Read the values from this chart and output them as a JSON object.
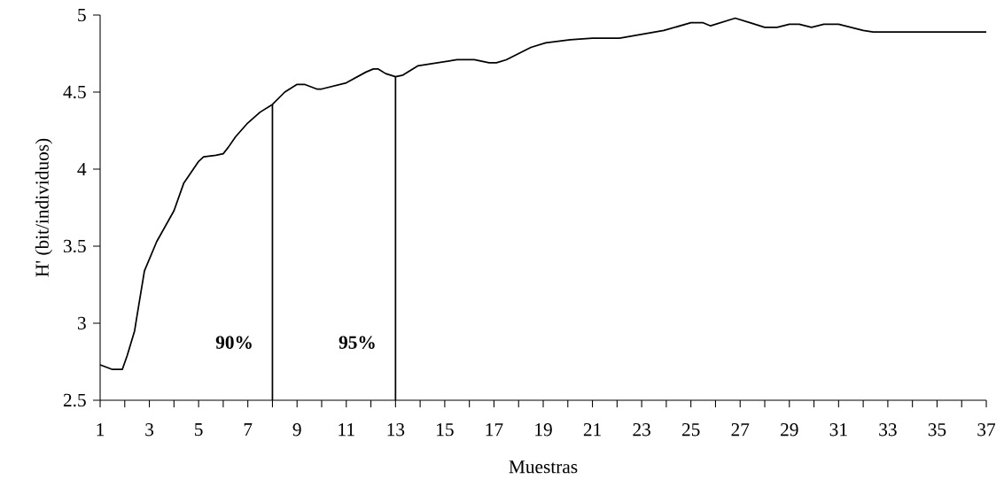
{
  "chart_data": {
    "type": "line",
    "xlabel": "Muestras",
    "ylabel": "H' (bit/individuos)",
    "x": [
      1,
      1.5,
      1.9,
      2.1,
      2.4,
      2.5,
      2.8,
      3.3,
      4,
      4.4,
      5,
      5.2,
      5.7,
      6,
      6.2,
      6.5,
      7,
      7.5,
      8,
      8.5,
      9,
      9.3,
      9.8,
      10,
      10.5,
      11,
      11.8,
      12.1,
      12.3,
      12.6,
      13,
      13.3,
      13.9,
      15.5,
      16.2,
      16.8,
      17.1,
      17.5,
      18.5,
      19.1,
      20.1,
      21,
      22.1,
      23.9,
      25,
      25.5,
      25.8,
      26.8,
      27.4,
      28,
      28.5,
      29,
      29.4,
      29.9,
      30.4,
      31,
      31.5,
      32,
      32.4,
      37
    ],
    "series": [
      {
        "color": "#000000",
        "values": [
          2.73,
          2.7,
          2.7,
          2.79,
          2.95,
          3.05,
          3.34,
          3.53,
          3.73,
          3.91,
          4.05,
          4.08,
          4.09,
          4.1,
          4.14,
          4.21,
          4.3,
          4.37,
          4.42,
          4.5,
          4.55,
          4.55,
          4.52,
          4.52,
          4.54,
          4.56,
          4.63,
          4.65,
          4.65,
          4.62,
          4.6,
          4.61,
          4.67,
          4.71,
          4.71,
          4.69,
          4.69,
          4.71,
          4.79,
          4.82,
          4.84,
          4.85,
          4.85,
          4.9,
          4.95,
          4.95,
          4.93,
          4.98,
          4.95,
          4.92,
          4.92,
          4.94,
          4.94,
          4.92,
          4.94,
          4.94,
          4.92,
          4.9,
          4.89,
          4.89
        ]
      }
    ],
    "xlim": [
      1,
      37
    ],
    "ylim": [
      2.5,
      5
    ],
    "xticks": [
      1,
      {
        "value": 2,
        "label": null
      },
      3,
      {
        "value": 4,
        "label": null
      },
      5,
      {
        "value": 6,
        "label": null
      },
      7,
      {
        "value": 8,
        "label": null
      },
      9,
      {
        "value": 10,
        "label": null
      },
      11,
      {
        "value": 12,
        "label": null
      },
      13,
      {
        "value": 14,
        "label": null
      },
      15,
      {
        "value": 16,
        "label": null
      },
      17,
      {
        "value": 18,
        "label": null
      },
      19,
      {
        "value": 20,
        "label": null
      },
      21,
      {
        "value": 22,
        "label": null
      },
      23,
      {
        "value": 24,
        "label": null
      },
      25,
      {
        "value": 26,
        "label": null
      },
      27,
      {
        "value": 28,
        "label": null
      },
      29,
      {
        "value": 30,
        "label": null
      },
      31,
      {
        "value": 32,
        "label": null
      },
      33,
      {
        "value": 34,
        "label": null
      },
      35,
      {
        "value": 36,
        "label": null
      },
      37
    ],
    "yticks": [
      2.5,
      3,
      3.5,
      4,
      4.5,
      5
    ],
    "ref_lines": [
      {
        "axis": "x",
        "value": 8
      },
      {
        "axis": "x",
        "value": 13
      }
    ],
    "annotations": [
      {
        "text": "90%",
        "x": 8
      },
      {
        "text": "95%",
        "x": 13
      }
    ],
    "grid": false,
    "marker": "none",
    "line_style": "solid"
  }
}
